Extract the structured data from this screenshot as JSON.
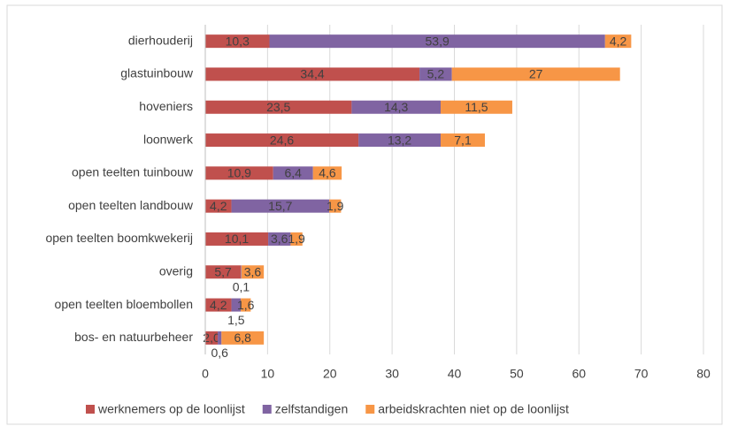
{
  "chart_data": {
    "type": "stacked_bar_horizontal",
    "categories": [
      "dierhouderij",
      "glastuinbouw",
      "hoveniers",
      "loonwerk",
      "open teelten tuinbouw",
      "open teelten landbouw",
      "open teelten boomkwekerij",
      "overig",
      "open teelten bloembollen",
      "bos- en natuurbeheer"
    ],
    "series": [
      {
        "name": "werknemers op de loonlijst",
        "color": "#c0504d",
        "values": [
          10.3,
          34.4,
          23.5,
          24.6,
          10.9,
          4.2,
          10.1,
          5.7,
          4.2,
          2.0
        ],
        "value_labels": [
          "10,3",
          "34,4",
          "23,5",
          "24,6",
          "10,9",
          "4,2",
          "10,1",
          "5,7",
          "4,2",
          "2,0"
        ]
      },
      {
        "name": "zelfstandigen",
        "color": "#8064a2",
        "values": [
          53.9,
          5.2,
          14.3,
          13.2,
          6.4,
          15.7,
          3.6,
          0.1,
          1.5,
          0.6
        ],
        "value_labels": [
          "53,9",
          "5,2",
          "14,3",
          "13,2",
          "6,4",
          "15,7",
          "3,6",
          "0,1",
          "1,5",
          "0,6"
        ]
      },
      {
        "name": "arbeidskrachten niet op de loonlijst",
        "color": "#f79646",
        "values": [
          4.2,
          27,
          11.5,
          7.1,
          4.6,
          1.9,
          1.9,
          3.6,
          1.6,
          6.8
        ],
        "value_labels": [
          "4,2",
          "27",
          "11,5",
          "7,1",
          "4,6",
          "1,9",
          "1,9",
          "3,6",
          "1,6",
          "6,8"
        ]
      }
    ],
    "xlim": [
      0,
      80
    ],
    "xticks": [
      0,
      10,
      20,
      30,
      40,
      50,
      60,
      70,
      80
    ],
    "grid": true,
    "legend": "bottom"
  }
}
